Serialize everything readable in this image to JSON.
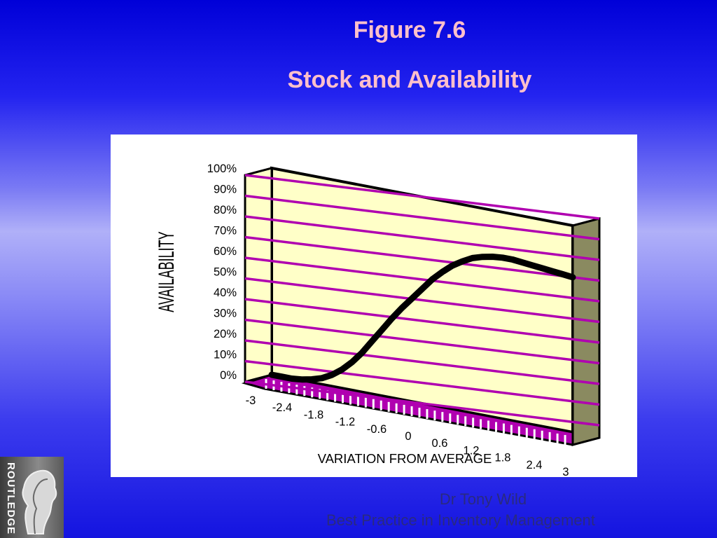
{
  "slide": {
    "title": "Figure 7.6",
    "subtitle": "Stock and Availability"
  },
  "footer": {
    "author": "Dr Tony Wild",
    "book": "Best Practice in Inventory Management"
  },
  "logo": {
    "text": "ROUTLEDGE",
    "icon": "profile-heads-icon"
  },
  "colors": {
    "background_top": "#0000d8",
    "title_text": "#ffc0cb",
    "wall_fill": "#ffffc8",
    "gridline": "#b000b0",
    "curve": "#000000",
    "footer_text": "#2a2a80"
  },
  "chart_data": {
    "type": "line",
    "style": "3d",
    "title": "",
    "xlabel": "VARIATION FROM AVERAGE",
    "ylabel": "AVAILABILITY",
    "categories": [
      "-3",
      "-2.4",
      "-1.8",
      "-1.2",
      "-0.6",
      "0",
      "0.6",
      "1.2",
      "1.8",
      "2.4",
      "3"
    ],
    "ytick_labels": [
      "0%",
      "10%",
      "20%",
      "30%",
      "40%",
      "50%",
      "60%",
      "70%",
      "80%",
      "90%",
      "100%"
    ],
    "ylim": [
      0,
      100
    ],
    "grid": true,
    "series": [
      {
        "x": [
          -3,
          -2.8,
          -2.6,
          -2.4,
          -2.2,
          -2.0,
          -1.8,
          -1.6,
          -1.4,
          -1.2,
          -1.0,
          -0.8,
          -0.6,
          -0.4,
          -0.2,
          0,
          0.2,
          0.4,
          0.6,
          0.8,
          1.0,
          1.2,
          1.4,
          1.6,
          1.8,
          2.0,
          2.2,
          2.4,
          2.6,
          2.8,
          3.0
        ],
        "values": [
          0,
          0,
          0,
          0.5,
          1.5,
          3,
          5.5,
          9,
          13.5,
          19,
          25.5,
          32,
          38.5,
          44.5,
          50,
          55.5,
          61,
          65.5,
          69.5,
          72.5,
          75,
          76.5,
          77.5,
          78,
          78,
          77.5,
          77,
          76.5,
          76,
          75.5,
          75
        ]
      }
    ]
  }
}
